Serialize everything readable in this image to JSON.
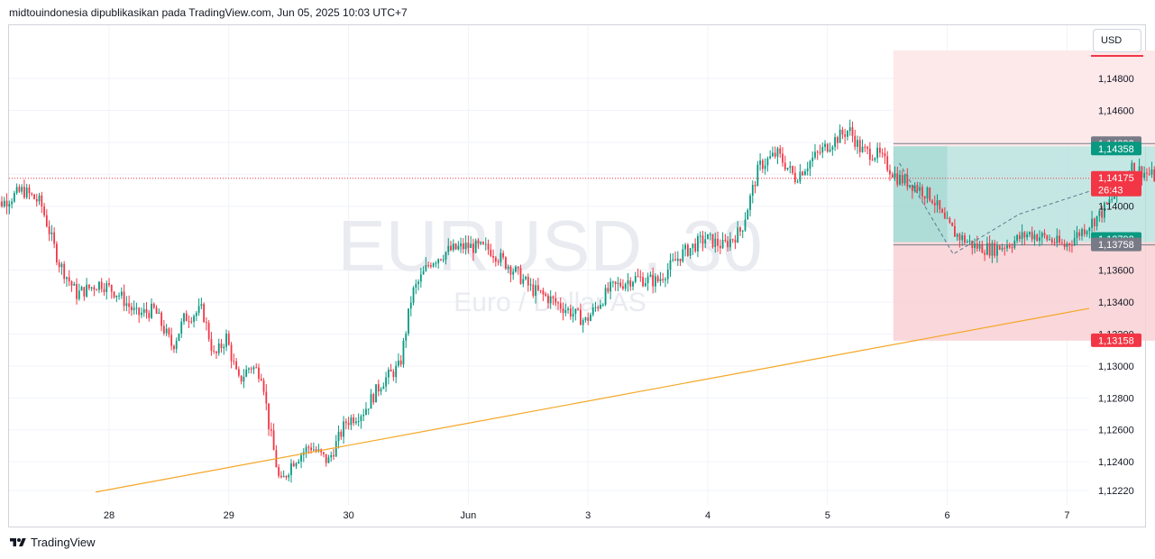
{
  "header": {
    "text": "midtouindonesia dipublikasikan pada TradingView.com, Jun 05, 2025 10:03 UTC+7"
  },
  "footer": {
    "brand": "TradingView"
  },
  "price_axis": {
    "currency": "USD"
  },
  "watermark": {
    "symbol": "EURUSD, 30",
    "name": "Euro / Dollar AS"
  },
  "colors": {
    "up": "#089981",
    "down": "#f23645",
    "trendline": "#f5a623",
    "profit_zone": "#b2dfdb",
    "loss_zone": "#f8d0d3",
    "grid": "#f0f3fa"
  },
  "chart_data": {
    "type": "candlestick",
    "symbol": "EURUSD",
    "interval": "30",
    "ylim": [
      1.1218,
      1.15
    ],
    "y_ticks": [
      "1,14800",
      "1,14600",
      "1,14400",
      "1,14200",
      "1,14000",
      "1,13600",
      "1,13400",
      "1,13200",
      "1,13000",
      "1,12800",
      "1,12600",
      "1,12400",
      "1,12220"
    ],
    "x_ticks": [
      "28",
      "29",
      "30",
      "Jun",
      "3",
      "4",
      "5",
      "6",
      "7"
    ],
    "price_labels": [
      {
        "text": "1,14392",
        "role": "stop-upper",
        "color": "#787b86",
        "value": 1.14392
      },
      {
        "text": "1,14358",
        "role": "upper-bound",
        "color": "#089981",
        "value": 1.14358
      },
      {
        "text": "1,14175",
        "role": "last-price",
        "color": "#f23645",
        "value": 1.14175,
        "countdown": "26:43"
      },
      {
        "text": "1,13792",
        "role": "entry",
        "color": "#089981",
        "value": 1.13792
      },
      {
        "text": "1,13758",
        "role": "lower-bound",
        "color": "#787b86",
        "value": 1.13758
      },
      {
        "text": "1,13158",
        "role": "stop",
        "color": "#f23645",
        "value": 1.13158
      }
    ],
    "position": {
      "entry": 1.13775,
      "target": 1.14375,
      "stop": 1.13158,
      "stop_top": 1.14975,
      "start_day": 3.31,
      "end_day": 5.82,
      "split_day": 3.82
    },
    "trendline": [
      {
        "day": 27.72,
        "price": 1.1221
      },
      {
        "day": 7.2,
        "price": 1.1336
      }
    ],
    "current_price": 1.14175,
    "ohlc_path": [
      [
        27.0,
        1.1398
      ],
      [
        27.15,
        1.1403
      ],
      [
        27.3,
        1.141
      ],
      [
        27.45,
        1.1402
      ],
      [
        27.6,
        1.1365
      ],
      [
        27.75,
        1.1345
      ],
      [
        27.95,
        1.1352
      ],
      [
        28.1,
        1.1345
      ],
      [
        28.25,
        1.1332
      ],
      [
        28.4,
        1.1335
      ],
      [
        28.55,
        1.1312
      ],
      [
        28.65,
        1.133
      ],
      [
        28.8,
        1.1335
      ],
      [
        28.9,
        1.1305
      ],
      [
        29.0,
        1.1318
      ],
      [
        29.1,
        1.129
      ],
      [
        29.2,
        1.13
      ],
      [
        29.3,
        1.1295
      ],
      [
        29.35,
        1.1265
      ],
      [
        29.45,
        1.1225
      ],
      [
        29.55,
        1.124
      ],
      [
        29.7,
        1.125
      ],
      [
        29.85,
        1.124
      ],
      [
        30.0,
        1.1265
      ],
      [
        30.15,
        1.1272
      ],
      [
        30.3,
        1.129
      ],
      [
        30.45,
        1.13
      ],
      [
        30.55,
        1.1345
      ],
      [
        30.7,
        1.1365
      ],
      [
        30.85,
        1.1372
      ],
      [
        31.0,
        1.1375
      ],
      [
        31.2,
        1.1373
      ],
      [
        31.4,
        1.136
      ],
      [
        31.55,
        1.1348
      ],
      [
        31.7,
        1.1342
      ],
      [
        31.85,
        1.1335
      ],
      [
        32.0,
        1.1328
      ],
      [
        32.2,
        1.1348
      ],
      [
        32.4,
        1.1355
      ],
      [
        32.6,
        1.1353
      ],
      [
        32.8,
        1.137
      ],
      [
        33.0,
        1.138
      ],
      [
        33.15,
        1.1375
      ],
      [
        33.3,
        1.1385
      ],
      [
        33.45,
        1.1425
      ],
      [
        33.6,
        1.1433
      ],
      [
        33.75,
        1.1418
      ],
      [
        33.9,
        1.143
      ],
      [
        34.05,
        1.144
      ],
      [
        34.2,
        1.1448
      ],
      [
        34.3,
        1.1435
      ],
      [
        34.45,
        1.1432
      ],
      [
        34.6,
        1.1418
      ],
      [
        34.75,
        1.1413
      ],
      [
        34.9,
        1.1405
      ],
      [
        35.0,
        1.139
      ],
      [
        35.1,
        1.1382
      ],
      [
        35.25,
        1.1375
      ],
      [
        35.4,
        1.1373
      ],
      [
        35.55,
        1.1377
      ],
      [
        35.7,
        1.1383
      ],
      [
        35.85,
        1.138
      ],
      [
        36.0,
        1.1375
      ],
      [
        36.15,
        1.1385
      ],
      [
        36.3,
        1.1395
      ],
      [
        36.45,
        1.141
      ],
      [
        36.55,
        1.1425
      ],
      [
        36.7,
        1.142
      ],
      [
        36.85,
        1.1415
      ],
      [
        37.0,
        1.142
      ],
      [
        37.15,
        1.1423
      ],
      [
        37.3,
        1.142
      ],
      [
        37.4,
        1.1417
      ]
    ]
  }
}
